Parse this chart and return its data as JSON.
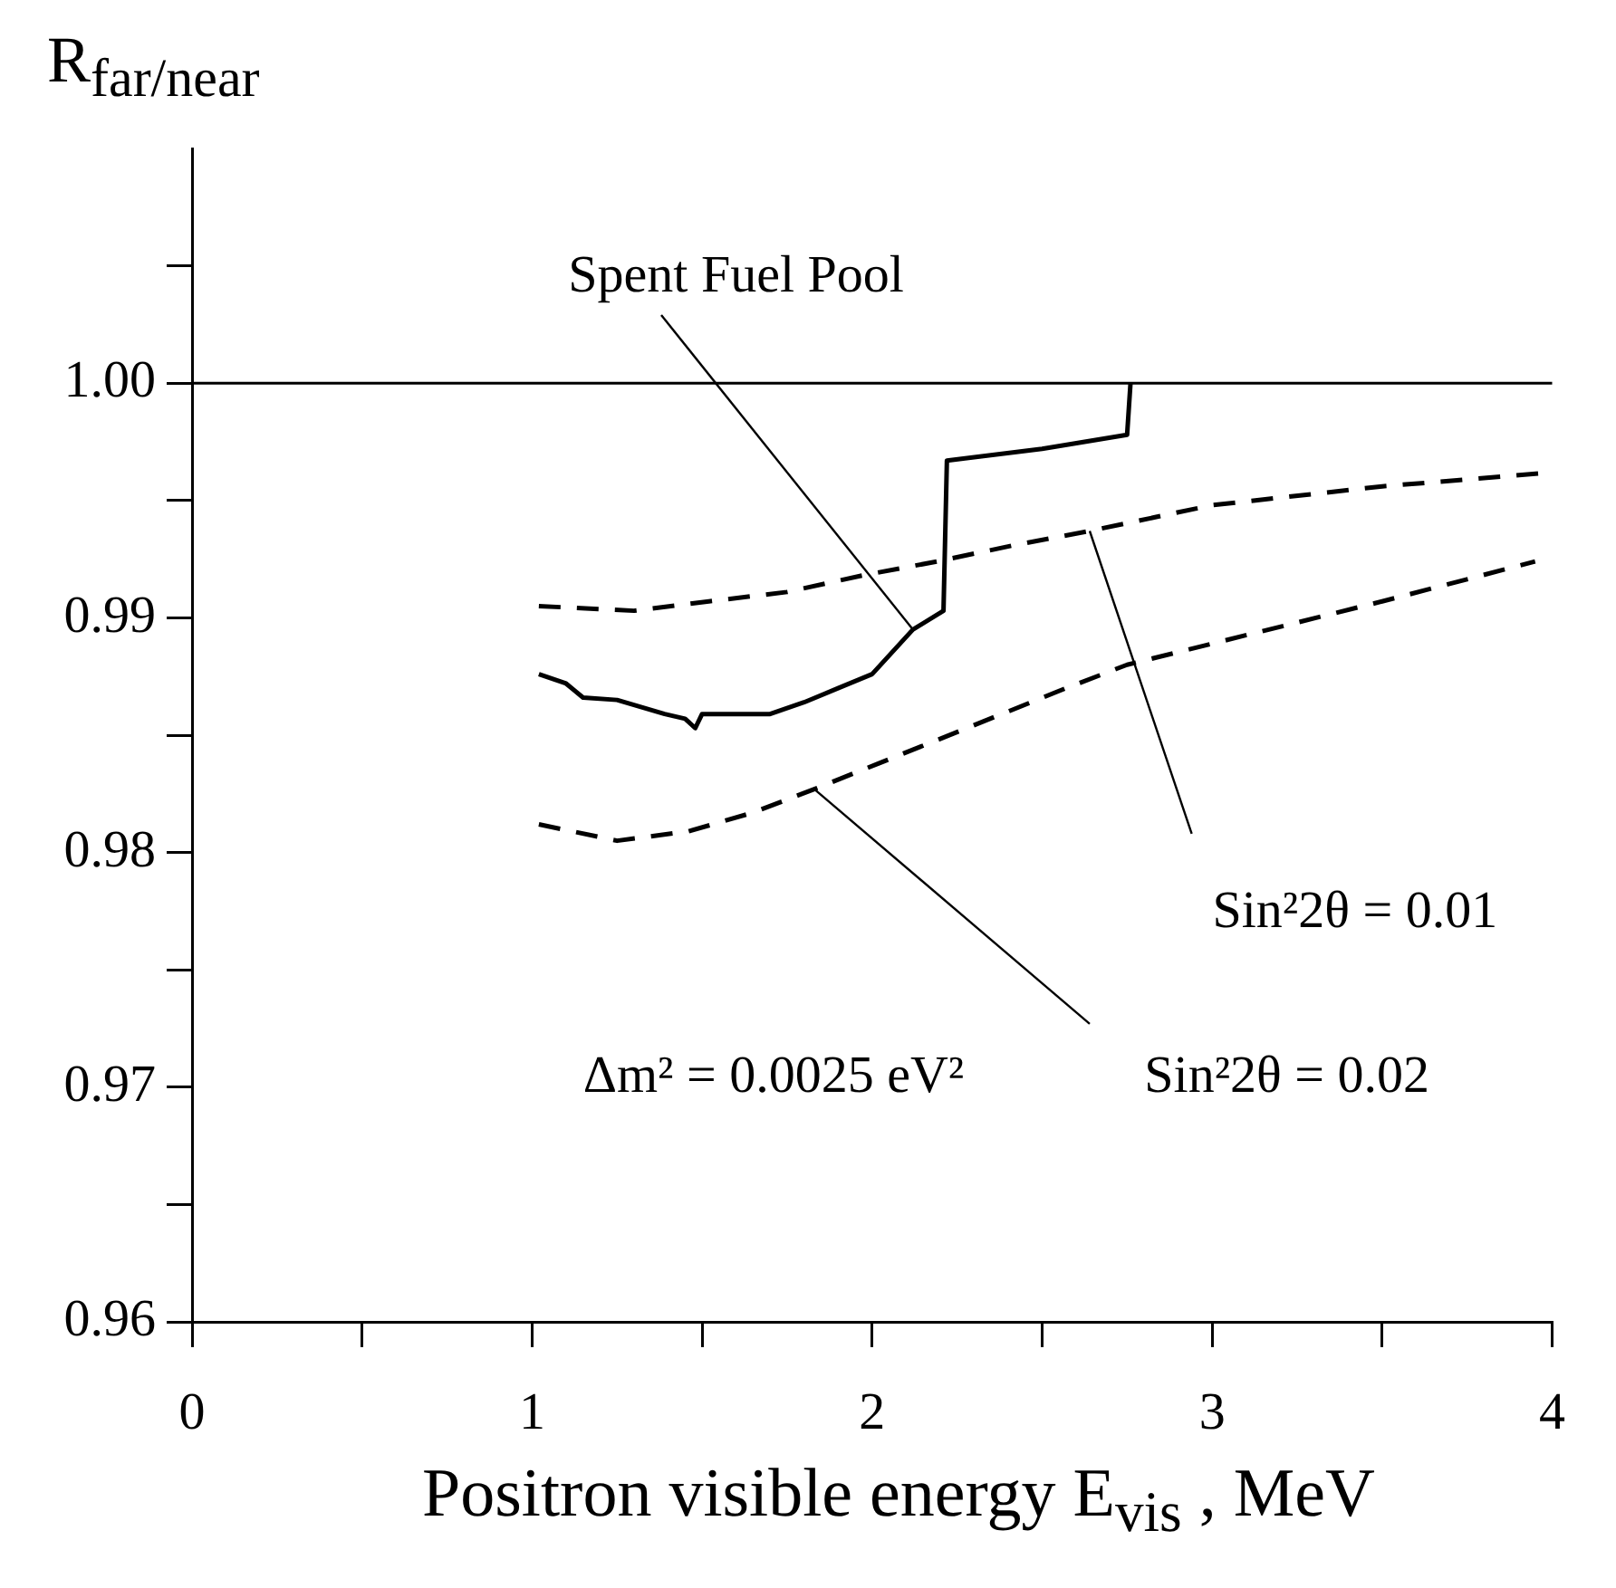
{
  "chart_data": {
    "type": "line",
    "xlabel": "Positron visible energy E$_{vis}$ , MeV",
    "ylabel": "R$_{far/near}$",
    "xlim": [
      0,
      4
    ],
    "xticks": [
      0,
      {
        "value": 0.5,
        "label": null
      },
      1,
      {
        "value": 1.5,
        "label": null
      },
      2,
      {
        "value": 2.5,
        "label": null
      },
      3,
      {
        "value": 3.5,
        "label": null
      },
      4
    ],
    "ylim": [
      0.96,
      1.01
    ],
    "yticks": [
      0.96,
      {
        "value": 0.965,
        "label": null
      },
      0.97,
      {
        "value": 0.975,
        "label": null
      },
      0.98,
      {
        "value": 0.985,
        "label": null
      },
      0.99,
      {
        "value": 0.995,
        "label": null
      },
      {
        "value": 1.0,
        "label": "1.00"
      },
      {
        "value": 1.005,
        "label": null
      }
    ],
    "grid": false,
    "legend": false,
    "marker": "none",
    "ref_lines": [
      {
        "axis": "y",
        "value": 1.0,
        "color": "#000000",
        "line_style": "solid"
      }
    ],
    "annotations": [
      "Δm² = 0.0025 eV²"
    ],
    "series": [
      {
        "name": "Spent Fuel Pool",
        "color": "#000000",
        "line_style": "solid",
        "x": [
          1.02,
          1.1,
          1.15,
          1.25,
          1.39,
          1.45,
          1.48,
          1.5,
          1.6,
          1.7,
          1.8,
          1.9,
          2.0,
          2.12,
          2.21,
          2.22,
          2.5,
          2.75,
          2.76
        ],
        "values": [
          0.9876,
          0.9872,
          0.9866,
          0.9865,
          0.9859,
          0.9857,
          0.9853,
          0.9859,
          0.9859,
          0.9859,
          0.9864,
          0.987,
          0.9876,
          0.9895,
          0.9903,
          0.9967,
          0.9972,
          0.9978,
          1.0
        ]
      },
      {
        "name": "Sin²2θ = 0.01",
        "color": "#000000",
        "line_style": "dashed",
        "x": [
          1.02,
          1.3,
          1.52,
          1.75,
          1.97,
          2.19,
          2.42,
          2.64,
          3.0,
          3.5,
          4.0
        ],
        "values": [
          0.9905,
          0.9903,
          0.9907,
          0.9911,
          0.9918,
          0.9924,
          0.9931,
          0.9937,
          0.9948,
          0.9956,
          0.9962
        ]
      },
      {
        "name": "Sin²2θ = 0.02",
        "color": "#000000",
        "line_style": "dashed",
        "x": [
          1.02,
          1.25,
          1.46,
          1.65,
          1.83,
          2.02,
          2.21,
          2.57,
          2.75,
          3.0,
          3.5,
          3.95
        ],
        "values": [
          0.9812,
          0.9805,
          0.9809,
          0.9817,
          0.9827,
          0.9838,
          0.9849,
          0.987,
          0.988,
          0.9889,
          0.9907,
          0.9924
        ]
      }
    ]
  }
}
